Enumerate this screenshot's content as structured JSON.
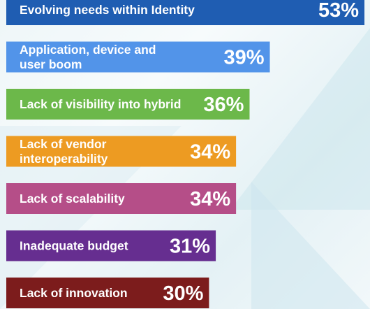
{
  "chart_data": {
    "type": "bar",
    "orientation": "horizontal",
    "categories": [
      "Evolving needs within Identity",
      "Application, device and user boom",
      "Lack of visibility into hybrid",
      "Lack of vendor interoperability",
      "Lack of scalability",
      "Inadequate budget",
      "Lack of innovation"
    ],
    "category_lines": [
      [
        "Evolving needs within Identity"
      ],
      [
        "Application, device and",
        "user boom"
      ],
      [
        "Lack of visibility into hybrid"
      ],
      [
        "Lack of vendor",
        "interoperability"
      ],
      [
        "Lack of scalability"
      ],
      [
        "Inadequate budget"
      ],
      [
        "Lack of innovation"
      ]
    ],
    "values": [
      53,
      39,
      36,
      34,
      34,
      31,
      30
    ],
    "value_labels": [
      "53%",
      "39%",
      "36%",
      "34%",
      "34%",
      "31%",
      "30%"
    ],
    "colors": [
      "#1f5db2",
      "#5294e9",
      "#6cb84a",
      "#ed9b22",
      "#b54e88",
      "#662e90",
      "#7c1c1c"
    ],
    "background": "#eef6f8",
    "title": "",
    "xlabel": "",
    "ylabel": "",
    "grid": false
  }
}
